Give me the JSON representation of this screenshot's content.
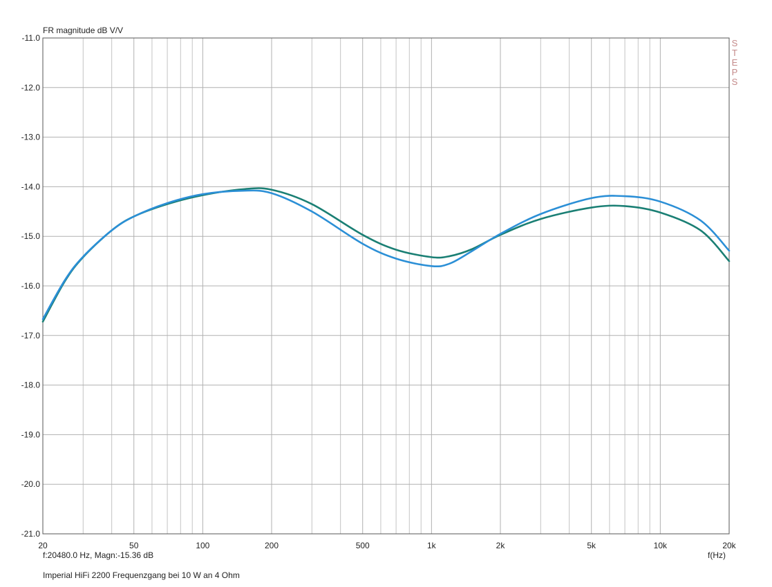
{
  "chart_data": {
    "type": "line",
    "title": "FR magnitude dB V/V",
    "xlabel": "f(Hz)",
    "ylabel": "",
    "xscale": "log",
    "xlim": [
      20,
      20000
    ],
    "ylim": [
      -21.0,
      -11.0
    ],
    "grid": true,
    "y_ticks": [
      -11.0,
      -12.0,
      -13.0,
      -14.0,
      -15.0,
      -16.0,
      -17.0,
      -18.0,
      -19.0,
      -20.0,
      -21.0
    ],
    "y_tick_labels": [
      "-11.0",
      "-12.0",
      "-13.0",
      "-14.0",
      "-15.0",
      "-16.0",
      "-17.0",
      "-18.0",
      "-19.0",
      "-20.0",
      "-21.0"
    ],
    "x_ticks": [
      20,
      50,
      100,
      200,
      500,
      1000,
      2000,
      5000,
      10000,
      20000
    ],
    "x_tick_labels": [
      "20",
      "50",
      "100",
      "200",
      "500",
      "1k",
      "2k",
      "5k",
      "10k",
      "20k"
    ],
    "x_minor_grid": [
      30,
      40,
      60,
      70,
      80,
      90,
      300,
      400,
      600,
      700,
      800,
      900,
      3000,
      4000,
      6000,
      7000,
      8000,
      9000
    ],
    "series": [
      {
        "color": "#1a7f74",
        "x": [
          20,
          25,
          30,
          40,
          50,
          70,
          100,
          150,
          200,
          300,
          500,
          700,
          1000,
          1200,
          1500,
          2000,
          3000,
          5000,
          7000,
          10000,
          15000,
          20000
        ],
        "y": [
          -16.72,
          -15.9,
          -15.42,
          -14.88,
          -14.6,
          -14.35,
          -14.17,
          -14.05,
          -14.06,
          -14.35,
          -14.97,
          -15.27,
          -15.42,
          -15.4,
          -15.26,
          -14.97,
          -14.65,
          -14.42,
          -14.39,
          -14.52,
          -14.88,
          -15.5
        ]
      },
      {
        "color": "#2b8fd6",
        "x": [
          20,
          25,
          30,
          40,
          50,
          70,
          100,
          150,
          200,
          300,
          500,
          700,
          1000,
          1200,
          1500,
          2000,
          3000,
          5000,
          7000,
          10000,
          15000,
          20000
        ],
        "y": [
          -16.67,
          -15.88,
          -15.41,
          -14.88,
          -14.6,
          -14.33,
          -14.15,
          -14.08,
          -14.13,
          -14.5,
          -15.15,
          -15.45,
          -15.6,
          -15.55,
          -15.3,
          -14.95,
          -14.55,
          -14.23,
          -14.19,
          -14.3,
          -14.68,
          -15.29
        ]
      }
    ]
  },
  "readout": "f:20480.0 Hz, Magn:-15.36 dB",
  "steps_label": [
    "S",
    "T",
    "E",
    "P",
    "S"
  ],
  "footer_note": "Imperial HiFi 2200 Frequenzgang bei 10 W an 4 Ohm"
}
